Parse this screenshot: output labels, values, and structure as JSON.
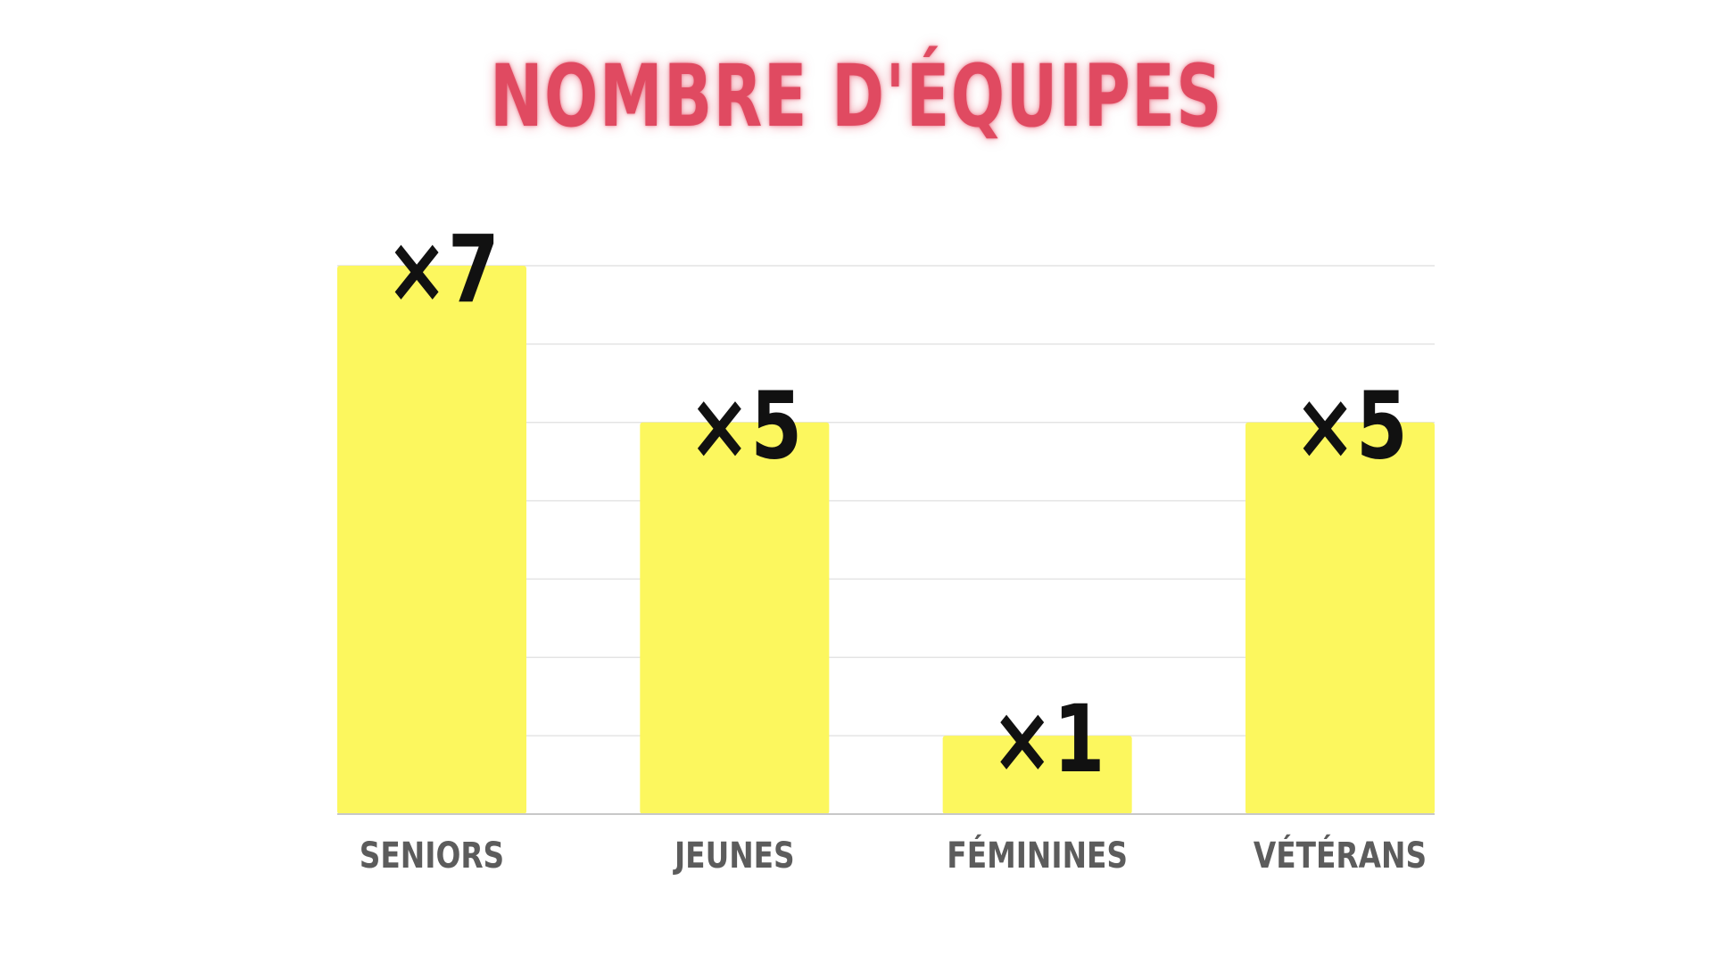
{
  "colors": {
    "title": "#e04a61",
    "bar": "#fcf75e",
    "grid": "#e4e4e4",
    "axis": "#c8c8c8",
    "tick_label": "#5c5c5c",
    "data_label": "#111111"
  },
  "chart_data": {
    "type": "bar",
    "title": "NOMBRE D'ÉQUIPES",
    "categories": [
      "SENIORS",
      "JEUNES",
      "FÉMININES",
      "VÉTÉRANS"
    ],
    "values": [
      7,
      5,
      1,
      5
    ],
    "data_labels": [
      "×7",
      "×5",
      "×1",
      "×5"
    ],
    "xlabel": "",
    "ylabel": "",
    "ylim": [
      0,
      7
    ],
    "grid": true,
    "legend": "none"
  }
}
